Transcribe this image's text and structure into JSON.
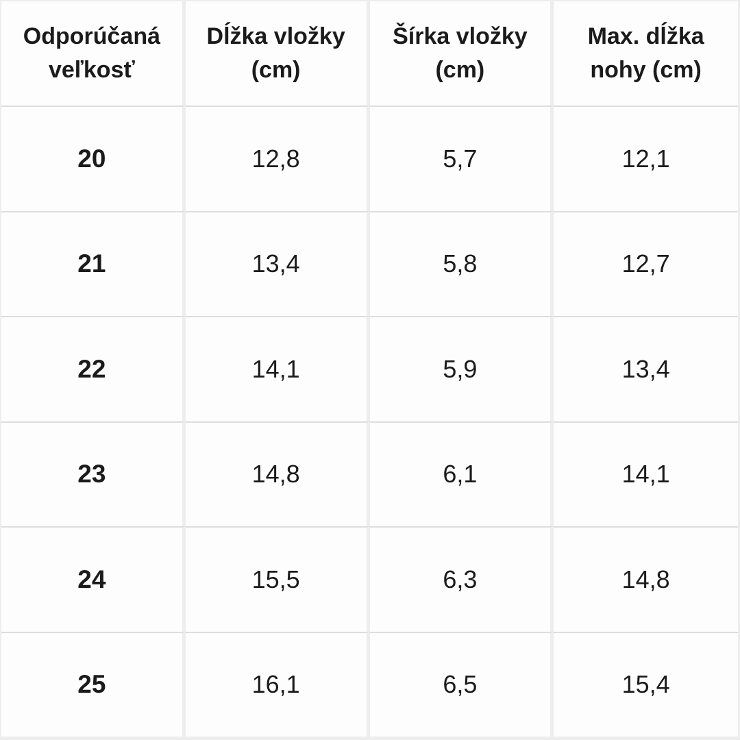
{
  "table": {
    "columns": [
      "Odporúčaná veľkosť",
      "Dĺžka vložky (cm)",
      "Šírka vložky (cm)",
      "Max. dĺžka nohy (cm)"
    ],
    "rows": [
      [
        "20",
        "12,8",
        "5,7",
        "12,1"
      ],
      [
        "21",
        "13,4",
        "5,8",
        "12,7"
      ],
      [
        "22",
        "14,1",
        "5,9",
        "13,4"
      ],
      [
        "23",
        "14,8",
        "6,1",
        "14,1"
      ],
      [
        "24",
        "15,5",
        "6,3",
        "14,8"
      ],
      [
        "25",
        "16,1",
        "6,5",
        "15,4"
      ]
    ]
  },
  "chart_data": {
    "type": "table",
    "title": "Size chart (Slovak): recommended shoe size vs insole dimensions",
    "columns": [
      "Odporúčaná veľkosť",
      "Dĺžka vložky (cm)",
      "Šírka vložky (cm)",
      "Max. dĺžka nohy (cm)"
    ],
    "rows": [
      {
        "odporucana_velkost": "20",
        "dlzka_vlozky_cm": "12,8",
        "sirka_vlozky_cm": "5,7",
        "max_dlzka_nohy_cm": "12,1"
      },
      {
        "odporucana_velkost": "21",
        "dlzka_vlozky_cm": "13,4",
        "sirka_vlozky_cm": "5,8",
        "max_dlzka_nohy_cm": "12,7"
      },
      {
        "odporucana_velkost": "22",
        "dlzka_vlozky_cm": "14,1",
        "sirka_vlozky_cm": "5,9",
        "max_dlzka_nohy_cm": "13,4"
      },
      {
        "odporucana_velkost": "23",
        "dlzka_vlozky_cm": "14,8",
        "sirka_vlozky_cm": "6,1",
        "max_dlzka_nohy_cm": "14,1"
      },
      {
        "odporucana_velkost": "24",
        "dlzka_vlozky_cm": "15,5",
        "sirka_vlozky_cm": "6,3",
        "max_dlzka_nohy_cm": "14,8"
      },
      {
        "odporucana_velkost": "25",
        "dlzka_vlozky_cm": "16,1",
        "sirka_vlozky_cm": "6,5",
        "max_dlzka_nohy_cm": "15,4"
      }
    ]
  },
  "colors": {
    "cell_background": "#fdfdfd",
    "gutter_background": "#ededed",
    "row_separator": "#dddddd",
    "text": "#1b1b1b"
  }
}
